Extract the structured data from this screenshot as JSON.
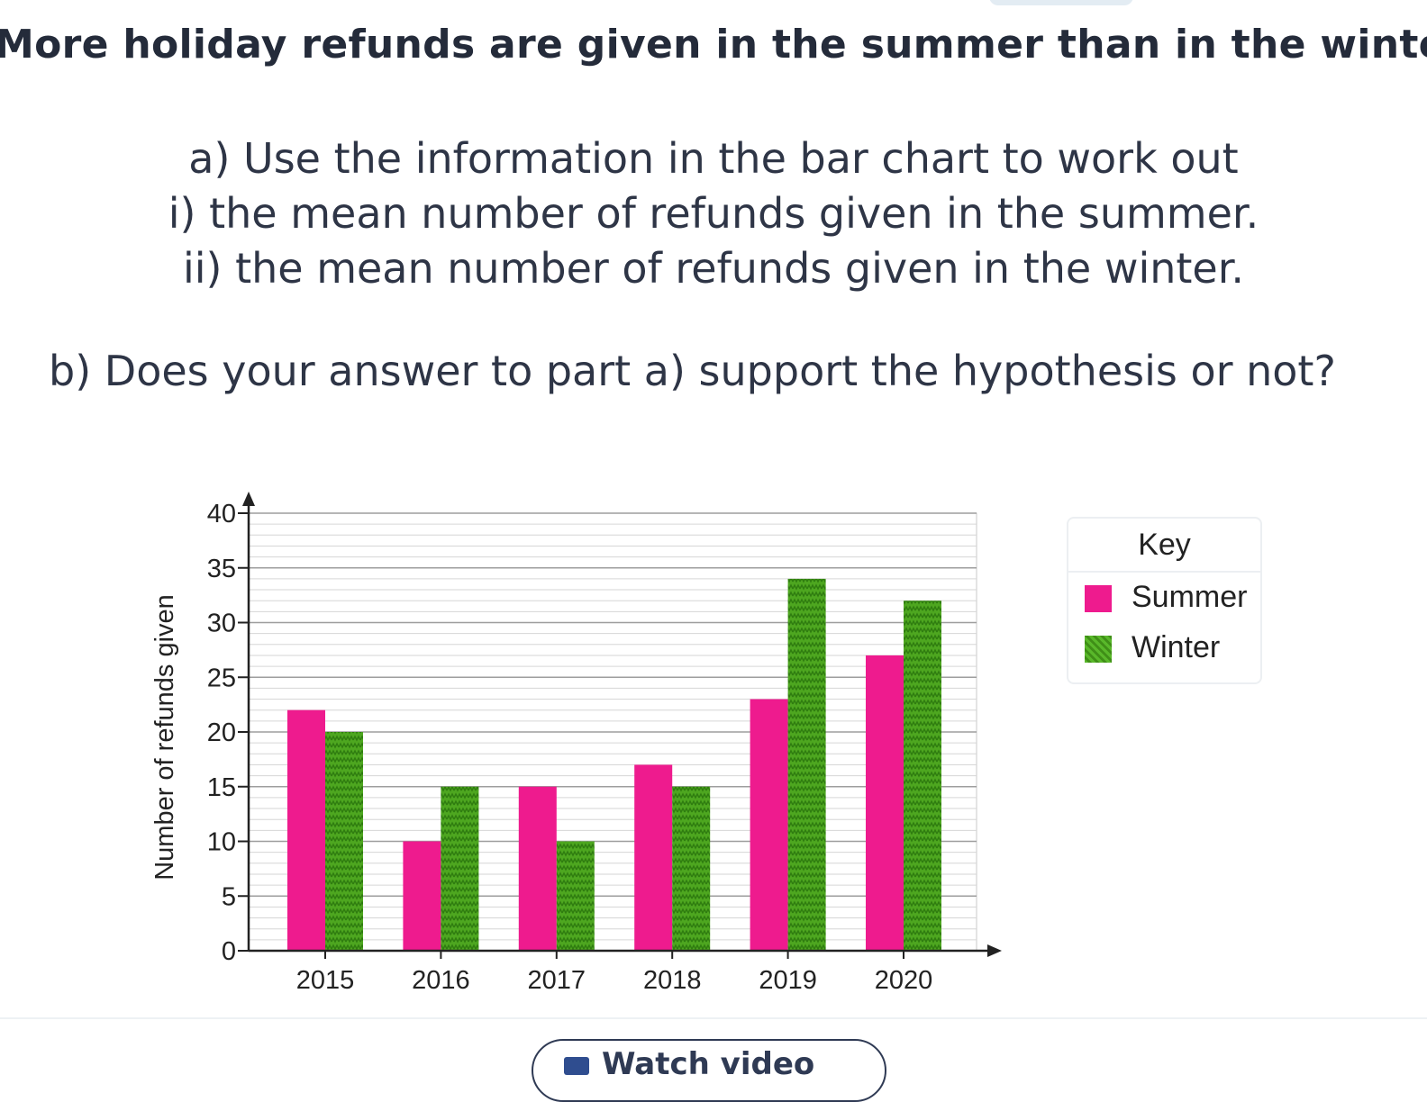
{
  "hypothesis": "More holiday refunds are given in the summer than in the winter.",
  "question_a": {
    "line1": "a) Use the information in the bar chart to work out",
    "line2": "i) the mean number of refunds given in the summer.",
    "line3": "ii) the mean number of refunds given in the winter."
  },
  "question_b": "b) Does your answer to part a) support the hypothesis or not?",
  "chart_data": {
    "type": "bar",
    "categories": [
      "2015",
      "2016",
      "2017",
      "2018",
      "2019",
      "2020"
    ],
    "series": [
      {
        "name": "Summer",
        "values": [
          22,
          10,
          15,
          17,
          23,
          27
        ],
        "color": "#ee1b8e"
      },
      {
        "name": "Winter",
        "values": [
          20,
          15,
          10,
          15,
          34,
          32
        ],
        "color": "#4ea720"
      }
    ],
    "ylabel": "Number of refunds given",
    "xlabel": "",
    "ylim": [
      0,
      40
    ],
    "yticks": [
      0,
      5,
      10,
      15,
      20,
      25,
      30,
      35,
      40
    ],
    "grid": true,
    "legend_title": "Key",
    "legend_position": "right"
  },
  "watch_button": {
    "label": "Watch video",
    "icon": "video-camera-icon"
  }
}
